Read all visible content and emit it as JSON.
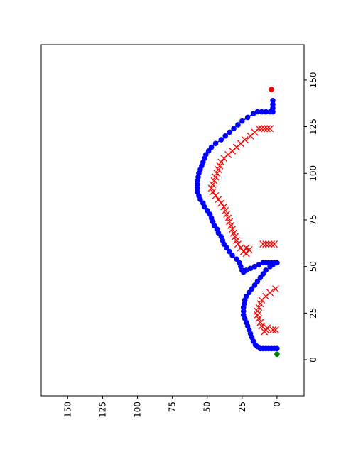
{
  "chart_data": {
    "type": "line",
    "xlim": [
      -19.4,
      169
    ],
    "ylim": [
      -19.4,
      169
    ],
    "xticks": [
      0,
      25,
      50,
      75,
      100,
      125,
      150
    ],
    "yticks": [
      0,
      25,
      50,
      75,
      100,
      125,
      150
    ],
    "series": [
      {
        "color": "#0000ff",
        "marker": "o",
        "line": true,
        "x": [
          6,
          6,
          6,
          6,
          6,
          6,
          6,
          7,
          8,
          10,
          12,
          14,
          16,
          18,
          20,
          22,
          24,
          26,
          28,
          30,
          32,
          34,
          36,
          38,
          40,
          42,
          44,
          46,
          48,
          50,
          51,
          52,
          52,
          52,
          52,
          52,
          52,
          51,
          50,
          49,
          48,
          47,
          48,
          50,
          52,
          54,
          56,
          58,
          60,
          62,
          64,
          66,
          68,
          70,
          72,
          74,
          76,
          78,
          80,
          82,
          84,
          86,
          88,
          90,
          92,
          94,
          96,
          98,
          100,
          102,
          104,
          106,
          108,
          110,
          112,
          114,
          116,
          118,
          120,
          122,
          124,
          126,
          128,
          130,
          132,
          133,
          133,
          133,
          133,
          133,
          135,
          137,
          139
        ],
        "values": [
          0,
          2,
          4,
          6,
          8,
          10,
          12,
          14,
          15.5,
          17,
          18,
          19,
          20,
          21,
          22,
          23,
          24,
          24,
          24,
          23.5,
          23,
          22,
          20,
          18,
          16,
          14,
          12,
          10,
          8,
          5,
          3,
          0,
          2,
          4,
          6,
          8,
          10,
          13,
          16,
          19,
          22,
          24,
          25,
          26,
          27,
          29,
          32,
          34,
          36,
          38,
          39,
          40,
          42,
          43,
          45,
          46,
          47,
          48,
          50,
          52,
          53,
          55,
          56,
          57,
          57,
          57,
          57,
          56.5,
          56,
          55,
          54,
          53,
          52,
          51,
          49,
          47,
          44,
          40,
          37,
          34,
          31,
          28,
          25,
          21,
          17,
          14,
          11,
          8,
          5,
          3,
          3,
          3,
          3
        ]
      },
      {
        "color": "#ff0000",
        "marker": "x",
        "line": false,
        "x": [
          15,
          16,
          17,
          16,
          16,
          18,
          20,
          22,
          24,
          26,
          28,
          30,
          32,
          34,
          36,
          38,
          62,
          62,
          62,
          62,
          62,
          57,
          58,
          59,
          60,
          60,
          62,
          64,
          66,
          68,
          70,
          72,
          74,
          76,
          78,
          80,
          82,
          84,
          86,
          88,
          90,
          92,
          94,
          96,
          98,
          100,
          102,
          104,
          106,
          108,
          110,
          112,
          114,
          116,
          118,
          120,
          122,
          124,
          124,
          124,
          124,
          124
        ],
        "values": [
          9,
          8,
          7,
          3,
          1,
          11,
          12,
          13,
          14,
          14,
          13,
          12,
          11,
          8,
          5,
          1,
          2,
          4,
          6,
          8,
          10,
          22,
          24,
          20,
          22,
          26,
          28,
          29,
          30,
          31,
          32,
          33,
          34,
          35,
          36,
          37,
          38,
          40,
          42,
          44,
          46,
          47,
          46,
          45,
          44,
          43,
          42,
          41,
          40,
          38,
          35,
          32,
          29,
          26,
          23,
          19,
          16,
          13,
          11,
          9,
          7,
          5
        ]
      },
      {
        "color": "#008000",
        "marker": "o",
        "line": false,
        "x": [
          3
        ],
        "values": [
          0
        ]
      },
      {
        "color": "#ff0000",
        "marker": "o",
        "line": false,
        "x": [
          145
        ],
        "values": [
          4
        ]
      }
    ]
  }
}
